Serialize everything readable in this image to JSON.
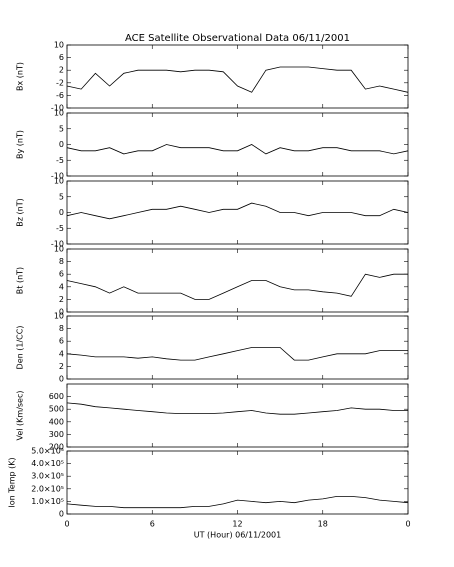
{
  "chart_data": [
    {
      "type": "line",
      "title": "ACE Satellite Observational Data   06/11/2001",
      "ylabel": "Bx (nT)",
      "xlim": [
        0,
        24
      ],
      "ylim": [
        -10,
        10
      ],
      "yticks": [
        -10,
        -6,
        -2,
        2,
        6,
        10
      ],
      "color": "#000000",
      "x": [
        0,
        1,
        2,
        3,
        4,
        5,
        6,
        7,
        8,
        9,
        10,
        11,
        12,
        13,
        14,
        15,
        16,
        17,
        18,
        19,
        20,
        21,
        22,
        23,
        24
      ],
      "values": [
        -3,
        -4,
        1,
        -3,
        1,
        2,
        2,
        2,
        1.5,
        2,
        2,
        1.5,
        -3,
        -5,
        2,
        3,
        3,
        3,
        2.5,
        2,
        2,
        -4,
        -3,
        -4,
        -5
      ]
    },
    {
      "type": "line",
      "ylabel": "By (nT)",
      "xlim": [
        0,
        24
      ],
      "ylim": [
        -10,
        10
      ],
      "yticks": [
        -10,
        -5,
        0,
        5,
        10
      ],
      "color": "#000000",
      "x": [
        0,
        1,
        2,
        3,
        4,
        5,
        6,
        7,
        8,
        9,
        10,
        11,
        12,
        13,
        14,
        15,
        16,
        17,
        18,
        19,
        20,
        21,
        22,
        23,
        24
      ],
      "values": [
        -1,
        -2,
        -2,
        -1,
        -3,
        -2,
        -2,
        0,
        -1,
        -1,
        -1,
        -2,
        -2,
        0,
        -3,
        -1,
        -2,
        -2,
        -1,
        -1,
        -2,
        -2,
        -2,
        -3,
        -2
      ]
    },
    {
      "type": "line",
      "ylabel": "Bz (nT)",
      "xlim": [
        0,
        24
      ],
      "ylim": [
        -10,
        10
      ],
      "yticks": [
        -10,
        -5,
        0,
        5,
        10
      ],
      "color": "#000000",
      "x": [
        0,
        1,
        2,
        3,
        4,
        5,
        6,
        7,
        8,
        9,
        10,
        11,
        12,
        13,
        14,
        15,
        16,
        17,
        18,
        19,
        20,
        21,
        22,
        23,
        24
      ],
      "values": [
        -1,
        0,
        -1,
        -2,
        -1,
        0,
        1,
        1,
        2,
        1,
        0,
        1,
        1,
        3,
        2,
        0,
        0,
        -1,
        0,
        0,
        0,
        -1,
        -1,
        1,
        0
      ]
    },
    {
      "type": "line",
      "ylabel": "Bt (nT)",
      "xlim": [
        0,
        24
      ],
      "ylim": [
        0,
        10
      ],
      "yticks": [
        0,
        2,
        4,
        6,
        8,
        10
      ],
      "color": "#000000",
      "x": [
        0,
        1,
        2,
        3,
        4,
        5,
        6,
        7,
        8,
        9,
        10,
        11,
        12,
        13,
        14,
        15,
        16,
        17,
        18,
        19,
        20,
        21,
        22,
        23,
        24
      ],
      "values": [
        5,
        4.5,
        4,
        3,
        4,
        3,
        3,
        3,
        3,
        2,
        2,
        3,
        4,
        5,
        5,
        4,
        3.5,
        3.5,
        3.2,
        3,
        2.5,
        6,
        5.5,
        6,
        6
      ]
    },
    {
      "type": "line",
      "ylabel": "Den (1/CC)",
      "xlim": [
        0,
        24
      ],
      "ylim": [
        0,
        10
      ],
      "yticks": [
        0,
        2,
        4,
        6,
        8,
        10
      ],
      "color": "#000000",
      "x": [
        0,
        1,
        2,
        3,
        4,
        5,
        6,
        7,
        8,
        9,
        10,
        11,
        12,
        13,
        14,
        15,
        16,
        17,
        18,
        19,
        20,
        21,
        22,
        23,
        24
      ],
      "values": [
        4,
        3.8,
        3.5,
        3.5,
        3.5,
        3.3,
        3.5,
        3.2,
        3,
        3,
        3.5,
        4,
        4.5,
        5,
        5,
        5,
        3,
        3,
        3.5,
        4,
        4,
        4,
        4.5,
        4.5,
        4.5
      ]
    },
    {
      "type": "line",
      "ylabel": "Vel (Km/sec)",
      "xlim": [
        0,
        24
      ],
      "ylim": [
        200,
        700
      ],
      "yticks": [
        200,
        300,
        400,
        500,
        600
      ],
      "color": "#000000",
      "x": [
        0,
        1,
        2,
        3,
        4,
        5,
        6,
        7,
        8,
        9,
        10,
        11,
        12,
        13,
        14,
        15,
        16,
        17,
        18,
        19,
        20,
        21,
        22,
        23,
        24
      ],
      "values": [
        550,
        540,
        520,
        510,
        500,
        490,
        480,
        470,
        465,
        465,
        465,
        470,
        480,
        490,
        470,
        460,
        460,
        470,
        480,
        490,
        510,
        500,
        500,
        490,
        490
      ]
    },
    {
      "type": "line",
      "ylabel": "Ion Temp (K)",
      "xlabel": "UT (Hour)  06/11/2001",
      "xlim": [
        0,
        24
      ],
      "ylim": [
        0,
        500000
      ],
      "yticks": [
        0,
        {
          "value": 100000,
          "label": "1.0×10⁵"
        },
        {
          "value": 200000,
          "label": "2.0×10⁵"
        },
        {
          "value": 300000,
          "label": "3.0×10⁵"
        },
        {
          "value": 400000,
          "label": "4.0×10⁵"
        },
        {
          "value": 500000,
          "label": "5.0×10⁵"
        }
      ],
      "xticks": [
        0,
        6,
        12,
        18,
        {
          "value": 24,
          "label": "0"
        }
      ],
      "color": "#000000",
      "x": [
        0,
        1,
        2,
        3,
        4,
        5,
        6,
        7,
        8,
        9,
        10,
        11,
        12,
        13,
        14,
        15,
        16,
        17,
        18,
        19,
        20,
        21,
        22,
        23,
        24
      ],
      "values": [
        80000,
        70000,
        60000,
        60000,
        50000,
        50000,
        50000,
        50000,
        50000,
        60000,
        60000,
        80000,
        110000,
        100000,
        90000,
        100000,
        90000,
        110000,
        120000,
        140000,
        140000,
        130000,
        110000,
        100000,
        90000
      ]
    }
  ]
}
